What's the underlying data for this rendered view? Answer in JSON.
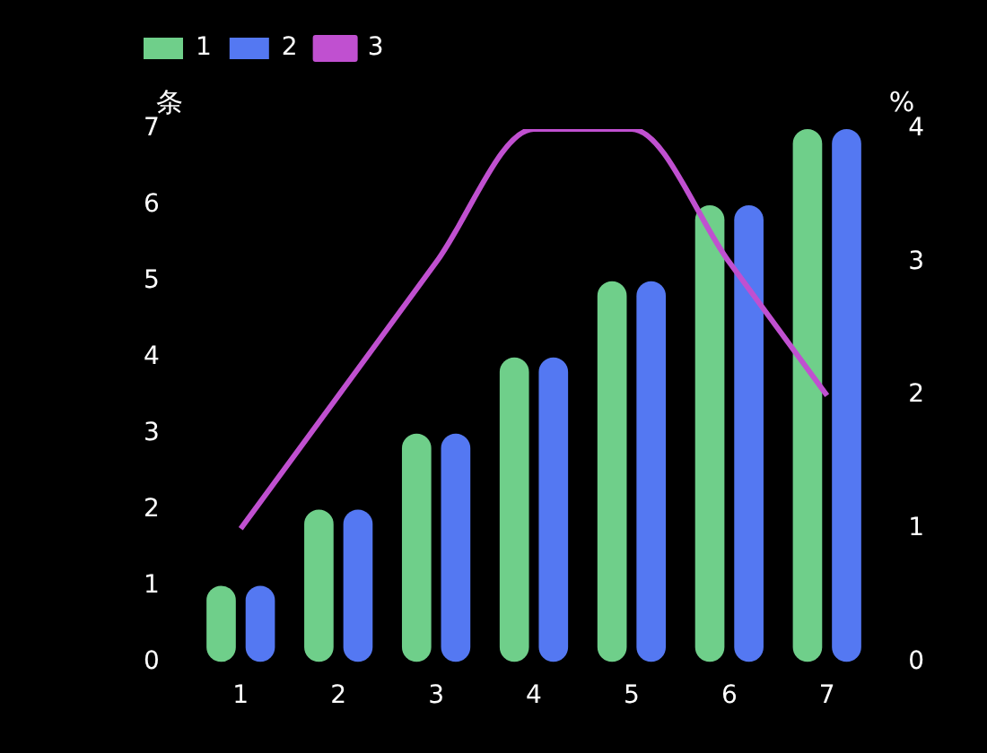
{
  "chart_data": {
    "type": "bar",
    "categories": [
      "1",
      "2",
      "3",
      "4",
      "5",
      "6",
      "7"
    ],
    "series": [
      {
        "name": "1",
        "color": "#6fcf8a",
        "values": [
          1,
          2,
          3,
          4,
          5,
          6,
          7
        ]
      },
      {
        "name": "2",
        "color": "#5478f2",
        "values": [
          1,
          2,
          3,
          4,
          5,
          6,
          7
        ]
      },
      {
        "name": "3",
        "type": "line",
        "axis": "y2",
        "color": "#c050d0",
        "values": [
          1,
          2,
          3,
          4,
          4,
          3,
          2
        ]
      }
    ],
    "ylabel": "条",
    "y2label": "%",
    "ylim": [
      0,
      7
    ],
    "yticks": [
      0,
      1,
      2,
      3,
      4,
      5,
      6,
      7
    ],
    "y2lim": [
      0,
      4
    ],
    "y2ticks": [
      0,
      1,
      2,
      3,
      4
    ],
    "legend": "top left",
    "grid": false
  }
}
